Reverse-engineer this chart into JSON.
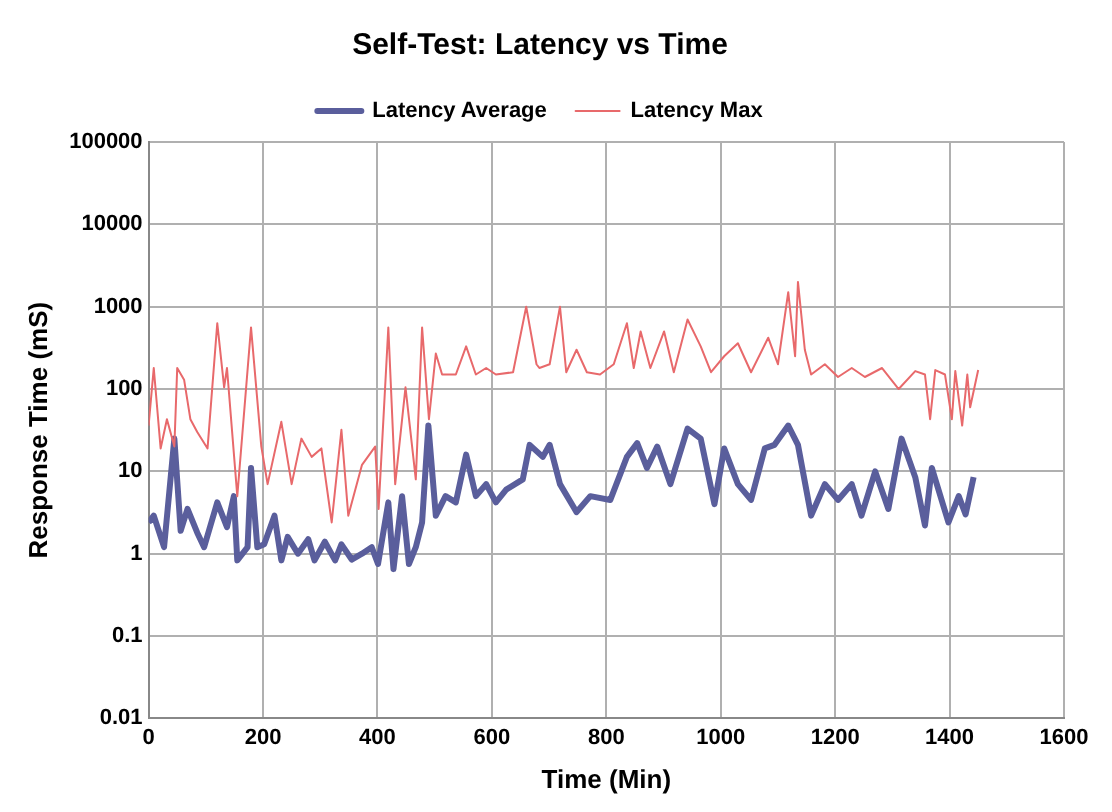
{
  "chart_data": {
    "type": "line",
    "title": "Self-Test: Latency vs Time",
    "xlabel": "Time (Min)",
    "ylabel": "Response Time (mS)",
    "log": "y",
    "grid": true,
    "legend": "top",
    "marker": "none",
    "line_style": "solid",
    "xlim": [
      0,
      1600
    ],
    "xticks": [
      0,
      200,
      400,
      600,
      800,
      1000,
      1200,
      1400,
      1600
    ],
    "ylim": [
      0.01,
      100000
    ],
    "yticks": [
      0.01,
      0.1,
      1,
      10,
      100,
      1000,
      10000,
      100000
    ],
    "series": [
      {
        "name": "Latency Average",
        "color": "#5a5e9c",
        "x": [
          0,
          9,
          27,
          45,
          56,
          68,
          85,
          97,
          120,
          137,
          149,
          155,
          173,
          179,
          190,
          202,
          220,
          232,
          243,
          261,
          279,
          290,
          308,
          326,
          337,
          355,
          373,
          390,
          401,
          419,
          428,
          443,
          455,
          467,
          478,
          489,
          502,
          519,
          537,
          555,
          572,
          590,
          607,
          625,
          654,
          666,
          689,
          701,
          719,
          748,
          772,
          807,
          836,
          854,
          871,
          889,
          912,
          942,
          965,
          989,
          1006,
          1030,
          1053,
          1077,
          1094,
          1118,
          1135,
          1158,
          1182,
          1205,
          1229,
          1246,
          1270,
          1293,
          1316,
          1340,
          1357,
          1369,
          1398,
          1416,
          1428,
          1442
        ],
        "values": [
          2.4,
          2.9,
          1.2,
          25,
          1.9,
          3.5,
          1.8,
          1.2,
          4.2,
          2.1,
          5,
          0.83,
          1.2,
          11,
          1.2,
          1.3,
          2.9,
          0.83,
          1.6,
          1,
          1.5,
          0.83,
          1.4,
          0.83,
          1.3,
          0.85,
          1,
          1.2,
          0.75,
          4.2,
          0.65,
          5,
          0.75,
          1.2,
          2.4,
          36,
          2.9,
          5,
          4.2,
          16,
          5,
          7,
          4.2,
          6,
          8,
          21,
          15,
          21,
          7,
          3.2,
          5,
          4.5,
          15,
          22,
          11,
          20,
          7,
          33,
          25,
          4,
          19,
          7,
          4.5,
          19,
          21,
          36,
          21,
          2.9,
          7,
          4.5,
          7,
          2.9,
          10,
          3.5,
          25,
          8.5,
          2.2,
          11,
          2.4,
          5,
          3,
          8.5
        ]
      },
      {
        "name": "Latency Max",
        "color": "#e8696b",
        "x": [
          0,
          9,
          21,
          32,
          45,
          50,
          62,
          73,
          85,
          103,
          120,
          132,
          137,
          155,
          179,
          197,
          208,
          232,
          250,
          267,
          285,
          302,
          320,
          337,
          349,
          373,
          396,
          402,
          419,
          431,
          449,
          467,
          478,
          490,
          502,
          513,
          537,
          555,
          572,
          590,
          607,
          637,
          660,
          678,
          683,
          701,
          719,
          730,
          748,
          766,
          789,
          813,
          836,
          848,
          860,
          877,
          901,
          918,
          942,
          965,
          983,
          1006,
          1030,
          1053,
          1083,
          1100,
          1118,
          1130,
          1135,
          1147,
          1158,
          1182,
          1205,
          1229,
          1252,
          1282,
          1311,
          1340,
          1357,
          1366,
          1375,
          1392,
          1404,
          1410,
          1422,
          1431,
          1436,
          1450
        ],
        "values": [
          36,
          180,
          19,
          43,
          20,
          180,
          130,
          43,
          30,
          19,
          630,
          105,
          180,
          5,
          560,
          20,
          7,
          40,
          7,
          25,
          15,
          19,
          2.4,
          32,
          2.9,
          12,
          20,
          3.5,
          560,
          7,
          105,
          8,
          560,
          43,
          270,
          150,
          150,
          330,
          150,
          180,
          150,
          160,
          1000,
          200,
          180,
          200,
          1000,
          160,
          300,
          160,
          150,
          200,
          630,
          180,
          500,
          180,
          500,
          160,
          700,
          330,
          160,
          250,
          360,
          160,
          420,
          200,
          1500,
          250,
          2000,
          300,
          150,
          200,
          140,
          180,
          140,
          180,
          100,
          165,
          150,
          43,
          170,
          150,
          43,
          165,
          36,
          150,
          60,
          170
        ]
      }
    ]
  }
}
